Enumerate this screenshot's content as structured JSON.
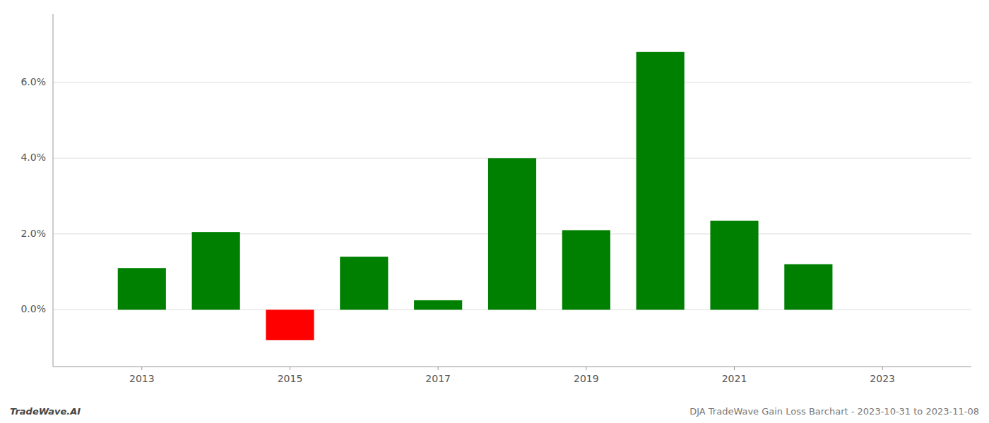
{
  "chart_data": {
    "type": "bar",
    "x": [
      2013,
      2014,
      2015,
      2016,
      2017,
      2018,
      2019,
      2020,
      2021,
      2022
    ],
    "values": [
      0.011,
      0.0205,
      -0.008,
      0.014,
      0.0025,
      0.04,
      0.021,
      0.068,
      0.0235,
      0.012
    ],
    "colors": [
      "#008000",
      "#008000",
      "#ff0000",
      "#008000",
      "#008000",
      "#008000",
      "#008000",
      "#008000",
      "#008000",
      "#008000"
    ],
    "xlim": [
      2011.8,
      2024.2
    ],
    "xticks": [
      2013,
      2015,
      2017,
      2019,
      2021,
      2023
    ],
    "ylim": [
      -0.015,
      0.078
    ],
    "yticks": [
      {
        "value": 0,
        "label": "0.0%"
      },
      {
        "value": 0.02,
        "label": "2.0%"
      },
      {
        "value": 0.04,
        "label": "4.0%"
      },
      {
        "value": 0.06,
        "label": "6.0%"
      }
    ],
    "grid": true,
    "annotations": [
      "TradeWave.AI",
      "DJA TradeWave Gain Loss Barchart - 2023-10-31 to 2023-11-08"
    ]
  }
}
